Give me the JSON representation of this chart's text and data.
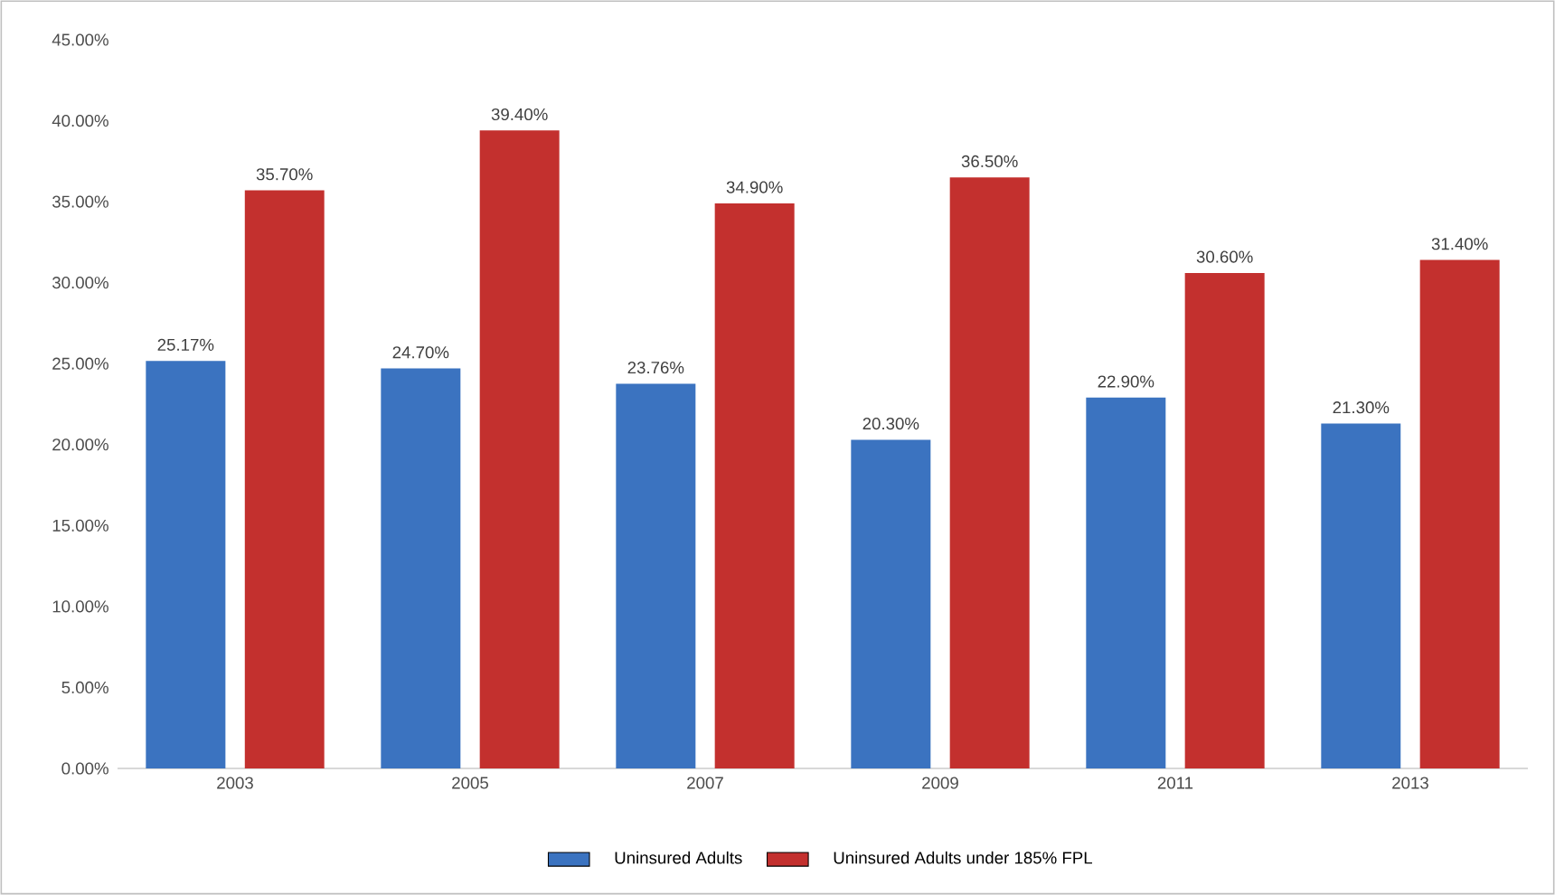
{
  "chart_data": {
    "type": "bar",
    "categories": [
      "2003",
      "2005",
      "2007",
      "2009",
      "2011",
      "2013"
    ],
    "series": [
      {
        "name": "Uninsured Adults",
        "color": "#3b73c0",
        "values": [
          25.17,
          24.7,
          23.76,
          20.3,
          22.9,
          21.3
        ],
        "value_labels": [
          "25.17%",
          "24.70%",
          "23.76%",
          "20.30%",
          "22.90%",
          "21.30%"
        ]
      },
      {
        "name": "Uninsured Adults under 185% FPL",
        "color": "#c3302e",
        "values": [
          35.7,
          39.4,
          34.9,
          36.5,
          30.6,
          31.4
        ],
        "value_labels": [
          "35.70%",
          "39.40%",
          "34.90%",
          "36.50%",
          "30.60%",
          "31.40%"
        ]
      }
    ],
    "ylim": [
      0,
      45
    ],
    "yticks": [
      {
        "value": 0,
        "label": "0.00%"
      },
      {
        "value": 5,
        "label": "5.00%"
      },
      {
        "value": 10,
        "label": "10.00%"
      },
      {
        "value": 15,
        "label": "15.00%"
      },
      {
        "value": 20,
        "label": "20.00%"
      },
      {
        "value": 25,
        "label": "25.00%"
      },
      {
        "value": 30,
        "label": "30.00%"
      },
      {
        "value": 35,
        "label": "35.00%"
      },
      {
        "value": 40,
        "label": "40.00%"
      },
      {
        "value": 45,
        "label": "45.00%"
      }
    ],
    "legend": "bottom"
  }
}
